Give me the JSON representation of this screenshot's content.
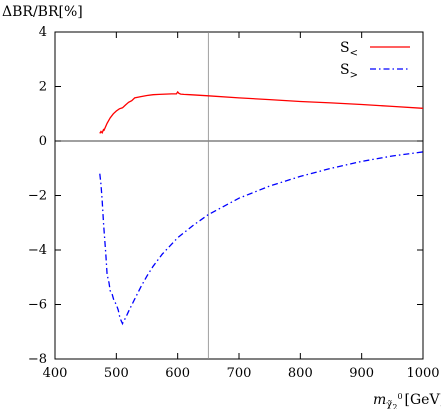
{
  "chart_data": {
    "type": "line",
    "ylabel": "ΔBR/BR[%]",
    "xlabel": {
      "var": "m",
      "sub": "χ̃",
      "subsub": "2",
      "sup": "0",
      "unit": "[GeV]"
    },
    "xlim": [
      400,
      1000
    ],
    "ylim": [
      -8,
      4
    ],
    "xticks": [
      400,
      500,
      600,
      700,
      800,
      900,
      1000
    ],
    "yticks": [
      -8,
      -6,
      -4,
      -2,
      0,
      2,
      4
    ],
    "vline": 650,
    "hline": 0,
    "grid": false,
    "legend_position": "top-right",
    "series": [
      {
        "name": "S",
        "name_sub": "<",
        "color": "#ff0000",
        "dash": "solid",
        "x": [
          473,
          475,
          477,
          479,
          480,
          482,
          485,
          490,
          495,
          500,
          505,
          510,
          515,
          520,
          525,
          530,
          540,
          550,
          560,
          570,
          580,
          590,
          598,
          600,
          602,
          605,
          610,
          620,
          650,
          700,
          750,
          800,
          850,
          900,
          950,
          1000
        ],
        "y": [
          0.28,
          0.35,
          0.3,
          0.42,
          0.4,
          0.5,
          0.65,
          0.85,
          1.0,
          1.1,
          1.18,
          1.22,
          1.32,
          1.42,
          1.48,
          1.58,
          1.63,
          1.67,
          1.7,
          1.71,
          1.72,
          1.73,
          1.73,
          1.8,
          1.75,
          1.72,
          1.71,
          1.7,
          1.66,
          1.58,
          1.52,
          1.45,
          1.4,
          1.34,
          1.27,
          1.2
        ]
      },
      {
        "name": "S",
        "name_sub": ">",
        "color": "#0000ff",
        "dash": "dashdot",
        "x": [
          473,
          475,
          477,
          479,
          481,
          483,
          485,
          488,
          490,
          493,
          496,
          500,
          503,
          506,
          508,
          510,
          512,
          515,
          520,
          530,
          540,
          550,
          560,
          575,
          600,
          625,
          650,
          700,
          750,
          800,
          850,
          900,
          950,
          1000
        ],
        "y": [
          -1.2,
          -1.6,
          -2.2,
          -3.0,
          -3.6,
          -4.2,
          -4.9,
          -5.2,
          -5.5,
          -5.6,
          -5.85,
          -6.0,
          -6.2,
          -6.5,
          -6.6,
          -6.7,
          -6.6,
          -6.5,
          -6.25,
          -5.8,
          -5.35,
          -4.95,
          -4.6,
          -4.15,
          -3.55,
          -3.1,
          -2.7,
          -2.1,
          -1.65,
          -1.3,
          -1.0,
          -0.75,
          -0.55,
          -0.4
        ]
      }
    ]
  }
}
